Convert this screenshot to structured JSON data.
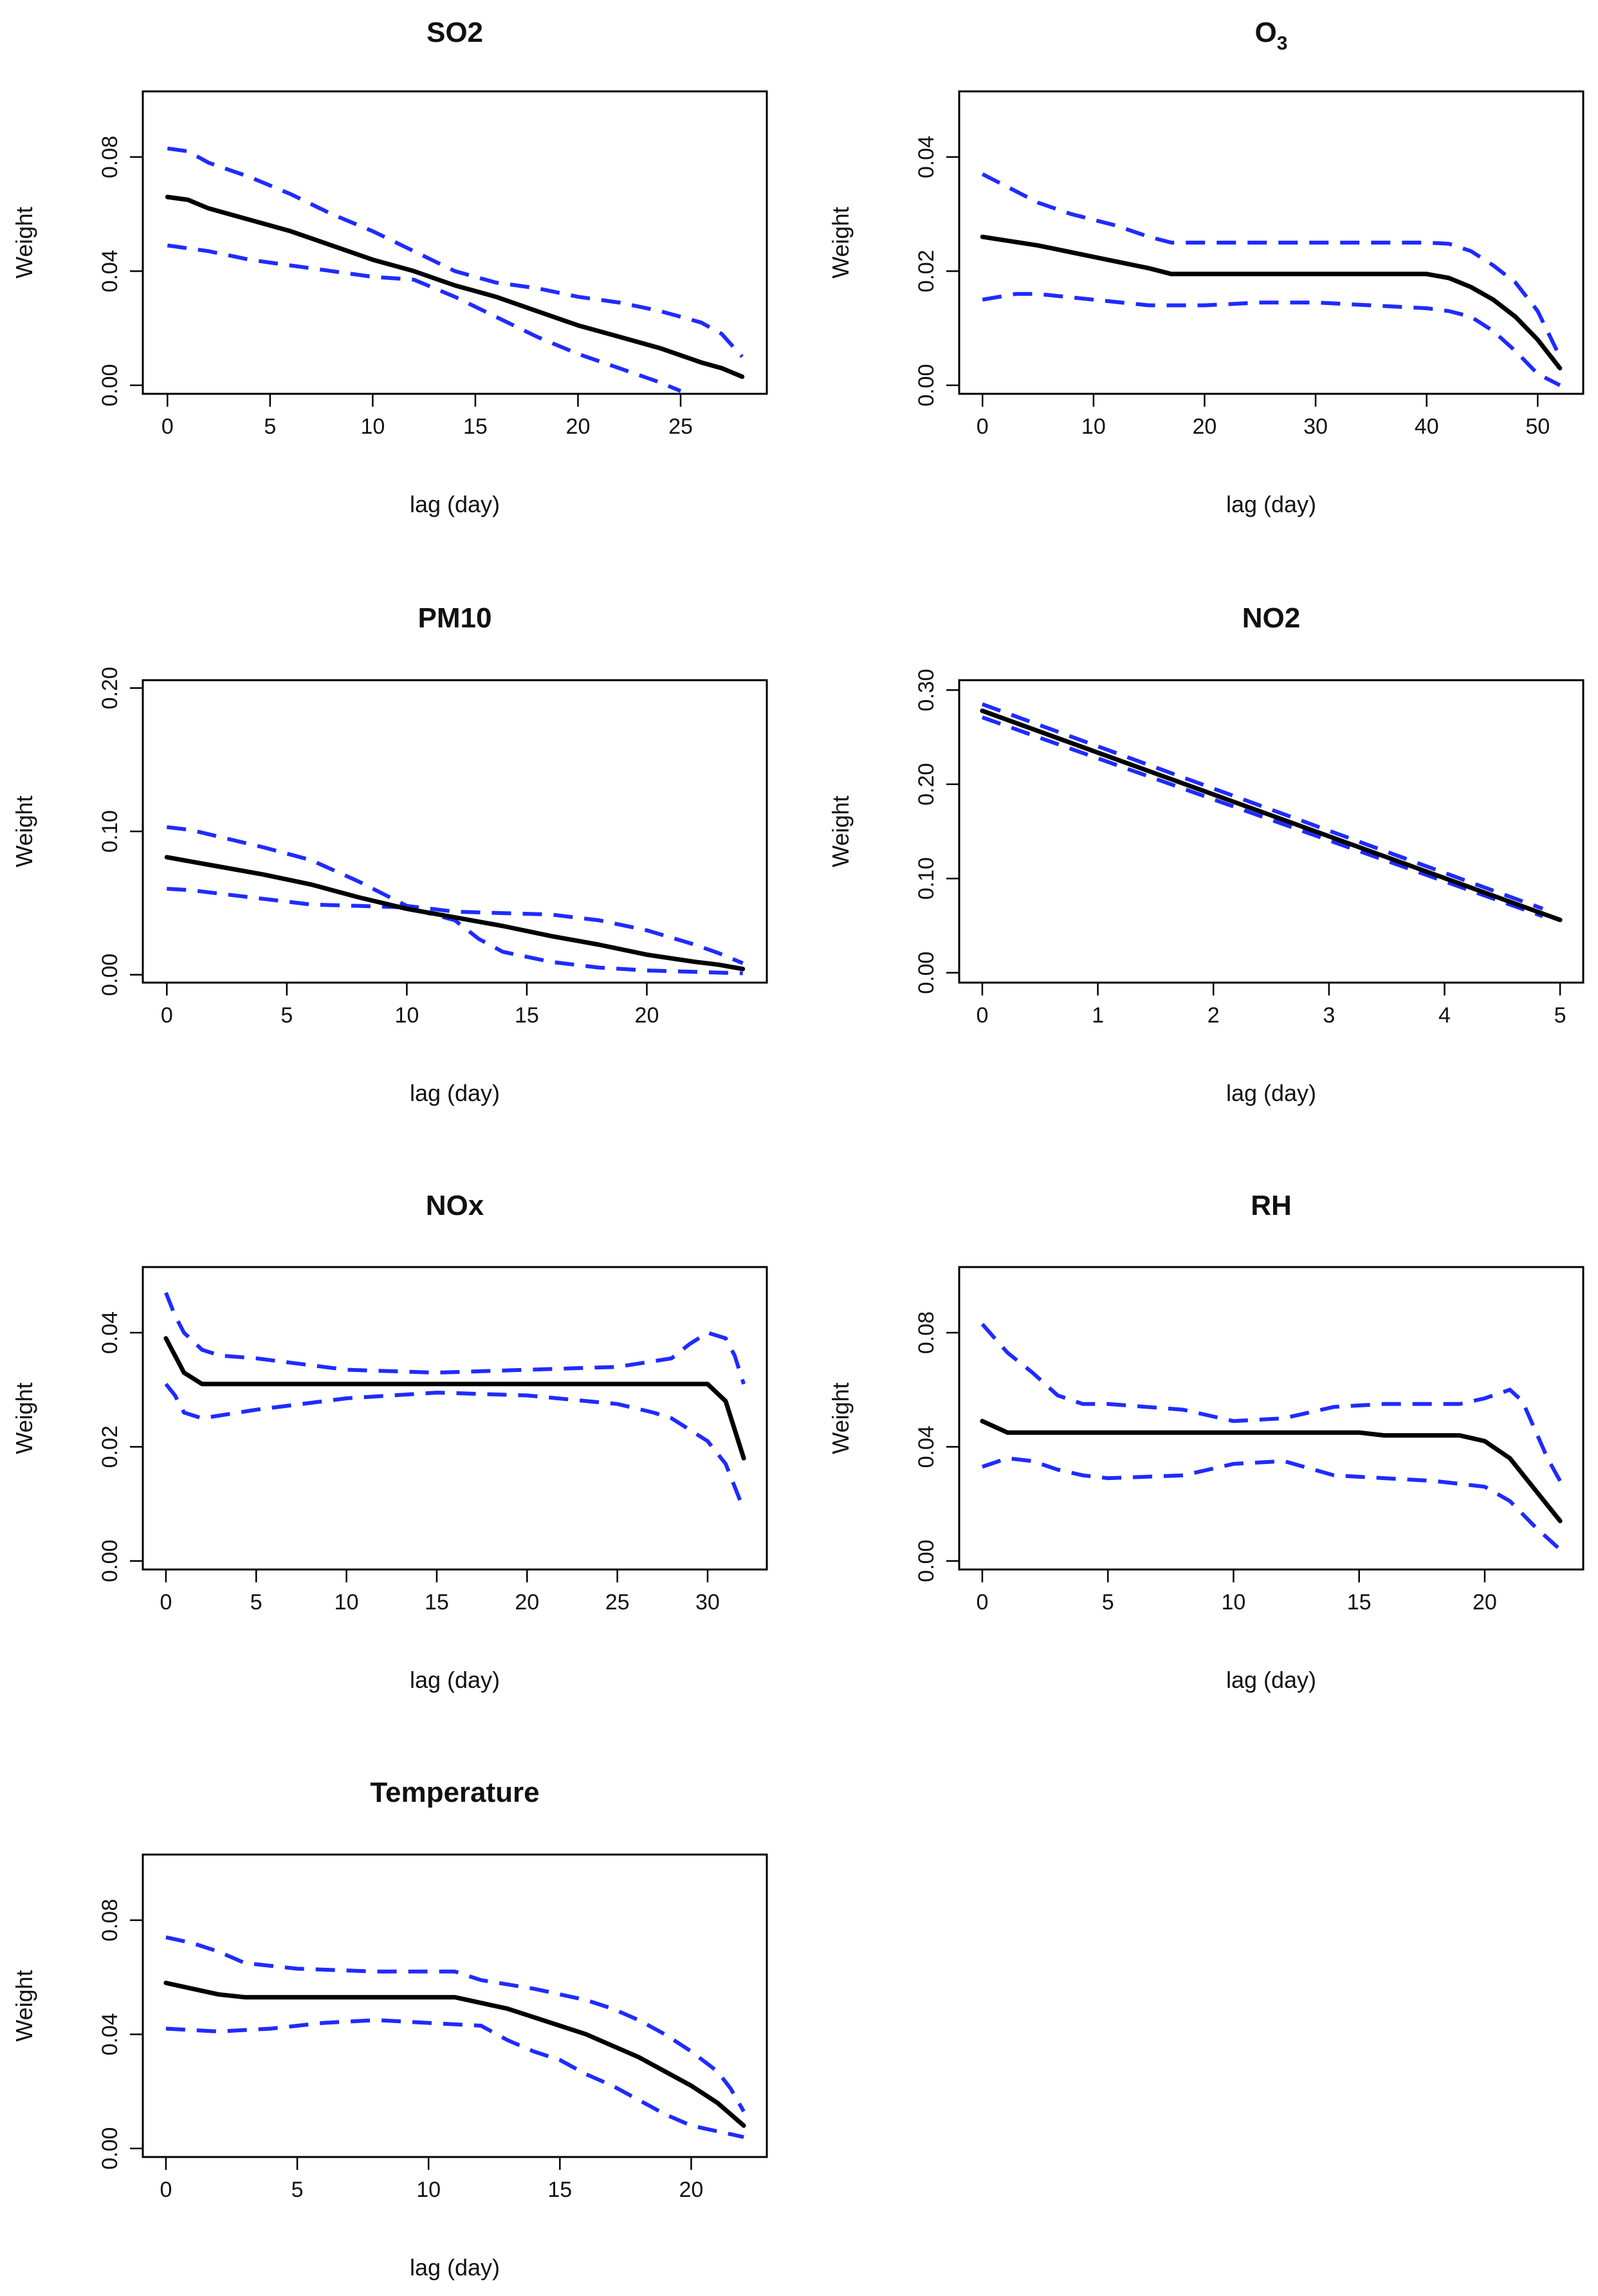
{
  "figure": {
    "estimate_color": "#000000",
    "ci_color": "#1f2bff"
  },
  "chart_data": [
    {
      "type": "line",
      "title": "SO2",
      "xlabel": "lag (day)",
      "ylabel": "Weight",
      "xlim": [
        -1.2,
        29.2
      ],
      "ylim": [
        -0.003,
        0.103
      ],
      "xticks": [
        0,
        5,
        10,
        15,
        20,
        25
      ],
      "xtick_labels": [
        "0",
        "5",
        "10",
        "15",
        "20",
        "25"
      ],
      "yticks": [
        0.0,
        0.04,
        0.08
      ],
      "ytick_labels": [
        "0.00",
        "0.04",
        "0.08"
      ],
      "series": [
        {
          "name": "estimate",
          "x": [
            0,
            1,
            2,
            4,
            6,
            8,
            10,
            12,
            14,
            16,
            18,
            20,
            22,
            24,
            26,
            27,
            28
          ],
          "y": [
            0.066,
            0.065,
            0.062,
            0.058,
            0.054,
            0.049,
            0.044,
            0.04,
            0.035,
            0.031,
            0.026,
            0.021,
            0.017,
            0.013,
            0.008,
            0.006,
            0.003
          ]
        },
        {
          "name": "upper",
          "x": [
            0,
            1,
            2,
            4,
            6,
            8,
            10,
            12,
            14,
            16,
            18,
            20,
            22,
            24,
            26,
            27,
            28
          ],
          "y": [
            0.083,
            0.082,
            0.078,
            0.073,
            0.067,
            0.06,
            0.054,
            0.047,
            0.04,
            0.036,
            0.034,
            0.031,
            0.029,
            0.026,
            0.022,
            0.018,
            0.01
          ]
        },
        {
          "name": "lower",
          "x": [
            0,
            1,
            2,
            4,
            6,
            8,
            10,
            12,
            14,
            16,
            18,
            20,
            22,
            24,
            25
          ],
          "y": [
            0.049,
            0.048,
            0.047,
            0.044,
            0.042,
            0.04,
            0.038,
            0.037,
            0.031,
            0.024,
            0.017,
            0.011,
            0.006,
            0.001,
            -0.002
          ]
        }
      ]
    },
    {
      "type": "line",
      "title": "O",
      "title_subscript": "3",
      "xlabel": "lag (day)",
      "ylabel": "Weight",
      "xlim": [
        -2.1,
        54.1
      ],
      "ylim": [
        -0.0015,
        0.0515
      ],
      "xticks": [
        0,
        10,
        20,
        30,
        40,
        50
      ],
      "xtick_labels": [
        "0",
        "10",
        "20",
        "30",
        "40",
        "50"
      ],
      "yticks": [
        0.0,
        0.02,
        0.04
      ],
      "ytick_labels": [
        "0.00",
        "0.02",
        "0.04"
      ],
      "series": [
        {
          "name": "estimate",
          "x": [
            0,
            5,
            10,
            15,
            17,
            25,
            30,
            35,
            40,
            42,
            44,
            46,
            48,
            50,
            52
          ],
          "y": [
            0.026,
            0.0245,
            0.0225,
            0.0205,
            0.0195,
            0.0195,
            0.0195,
            0.0195,
            0.0195,
            0.0188,
            0.0172,
            0.015,
            0.012,
            0.008,
            0.003
          ]
        },
        {
          "name": "upper",
          "x": [
            0,
            2,
            5,
            8,
            12,
            15,
            17,
            25,
            30,
            35,
            40,
            42,
            44,
            46,
            48,
            50,
            52
          ],
          "y": [
            0.037,
            0.035,
            0.032,
            0.03,
            0.028,
            0.026,
            0.025,
            0.025,
            0.025,
            0.025,
            0.025,
            0.0248,
            0.0235,
            0.021,
            0.018,
            0.013,
            0.005
          ]
        },
        {
          "name": "lower",
          "x": [
            0,
            3,
            5,
            10,
            15,
            20,
            25,
            30,
            35,
            40,
            42,
            44,
            46,
            48,
            50,
            52
          ],
          "y": [
            0.015,
            0.016,
            0.016,
            0.015,
            0.014,
            0.014,
            0.0145,
            0.0145,
            0.014,
            0.0135,
            0.013,
            0.012,
            0.0095,
            0.006,
            0.002,
            0.0
          ]
        }
      ]
    },
    {
      "type": "line",
      "title": "PM10",
      "xlabel": "lag (day)",
      "ylabel": "Weight",
      "xlim": [
        -1.0,
        25.0
      ],
      "ylim": [
        -0.0055,
        0.2055
      ],
      "xticks": [
        0,
        5,
        10,
        15,
        20
      ],
      "xtick_labels": [
        "0",
        "5",
        "10",
        "15",
        "20"
      ],
      "yticks": [
        0.0,
        0.1,
        0.2
      ],
      "ytick_labels": [
        "0.00",
        "0.10",
        "0.20"
      ],
      "series": [
        {
          "name": "estimate",
          "x": [
            0,
            1,
            2,
            4,
            6,
            8,
            10,
            12,
            14,
            16,
            18,
            20,
            22,
            23,
            24
          ],
          "y": [
            0.082,
            0.079,
            0.076,
            0.07,
            0.063,
            0.054,
            0.046,
            0.04,
            0.034,
            0.027,
            0.021,
            0.014,
            0.009,
            0.007,
            0.004
          ]
        },
        {
          "name": "upper",
          "x": [
            0,
            1,
            2,
            4,
            6,
            8,
            10,
            12,
            14,
            16,
            18,
            20,
            22,
            23,
            24
          ],
          "y": [
            0.103,
            0.101,
            0.097,
            0.089,
            0.08,
            0.065,
            0.048,
            0.044,
            0.043,
            0.042,
            0.038,
            0.031,
            0.021,
            0.015,
            0.008
          ]
        },
        {
          "name": "lower",
          "x": [
            0,
            1,
            2,
            4,
            6,
            8,
            10,
            12,
            13,
            14,
            16,
            18,
            20,
            22,
            24
          ],
          "y": [
            0.06,
            0.059,
            0.057,
            0.053,
            0.049,
            0.048,
            0.047,
            0.038,
            0.025,
            0.016,
            0.009,
            0.005,
            0.003,
            0.002,
            0.001
          ]
        }
      ]
    },
    {
      "type": "line",
      "title": "NO2",
      "xlabel": "lag (day)",
      "ylabel": "Weight",
      "xlim": [
        -0.2,
        5.2
      ],
      "ylim": [
        -0.0105,
        0.3105
      ],
      "xticks": [
        0,
        1,
        2,
        3,
        4,
        5
      ],
      "xtick_labels": [
        "0",
        "1",
        "2",
        "3",
        "4",
        "5"
      ],
      "yticks": [
        0.0,
        0.1,
        0.2,
        0.3
      ],
      "ytick_labels": [
        "0.00",
        "0.10",
        "0.20",
        "0.30"
      ],
      "series": [
        {
          "name": "estimate",
          "x": [
            0,
            5
          ],
          "y": [
            0.278,
            0.056
          ]
        },
        {
          "name": "upper",
          "x": [
            0,
            4.85
          ],
          "y": [
            0.285,
            0.068
          ]
        },
        {
          "name": "lower",
          "x": [
            0,
            4.85
          ],
          "y": [
            0.271,
            0.06
          ]
        }
      ]
    },
    {
      "type": "line",
      "title": "NOx",
      "xlabel": "lag (day)",
      "ylabel": "Weight",
      "xlim": [
        -1.28,
        33.28
      ],
      "ylim": [
        -0.0015,
        0.0515
      ],
      "xticks": [
        0,
        5,
        10,
        15,
        20,
        25,
        30
      ],
      "xtick_labels": [
        "0",
        "5",
        "10",
        "15",
        "20",
        "25",
        "30"
      ],
      "yticks": [
        0.0,
        0.02,
        0.04
      ],
      "ytick_labels": [
        "0.00",
        "0.02",
        "0.04"
      ],
      "series": [
        {
          "name": "estimate",
          "x": [
            0,
            0.5,
            1,
            2,
            5,
            10,
            15,
            20,
            25,
            30,
            31,
            32
          ],
          "y": [
            0.039,
            0.036,
            0.033,
            0.031,
            0.031,
            0.031,
            0.031,
            0.031,
            0.031,
            0.031,
            0.028,
            0.018
          ]
        },
        {
          "name": "upper",
          "x": [
            0,
            0.5,
            1,
            2,
            3,
            5,
            10,
            15,
            20,
            25,
            28,
            29,
            30,
            31,
            31.5,
            32
          ],
          "y": [
            0.047,
            0.043,
            0.04,
            0.037,
            0.036,
            0.0355,
            0.0335,
            0.033,
            0.0335,
            0.034,
            0.0355,
            0.038,
            0.04,
            0.039,
            0.036,
            0.031
          ]
        },
        {
          "name": "lower",
          "x": [
            0,
            0.5,
            1,
            2,
            3,
            5,
            10,
            15,
            20,
            25,
            27,
            28,
            29,
            30,
            31,
            32
          ],
          "y": [
            0.031,
            0.029,
            0.026,
            0.025,
            0.0255,
            0.0265,
            0.0285,
            0.0295,
            0.029,
            0.0275,
            0.026,
            0.025,
            0.023,
            0.021,
            0.017,
            0.009
          ]
        }
      ]
    },
    {
      "type": "line",
      "title": "RH",
      "xlabel": "lag (day)",
      "ylabel": "Weight",
      "xlim": [
        -0.92,
        23.92
      ],
      "ylim": [
        -0.003,
        0.103
      ],
      "xticks": [
        0,
        5,
        10,
        15,
        20
      ],
      "xtick_labels": [
        "0",
        "5",
        "10",
        "15",
        "20"
      ],
      "yticks": [
        0.0,
        0.04,
        0.08
      ],
      "ytick_labels": [
        "0.00",
        "0.04",
        "0.08"
      ],
      "series": [
        {
          "name": "estimate",
          "x": [
            0,
            0.5,
            1,
            5,
            10,
            15,
            16,
            19,
            20,
            21,
            22,
            23
          ],
          "y": [
            0.049,
            0.047,
            0.045,
            0.045,
            0.045,
            0.045,
            0.044,
            0.044,
            0.042,
            0.036,
            0.025,
            0.014
          ]
        },
        {
          "name": "upper",
          "x": [
            0,
            1,
            2,
            3,
            4,
            5,
            8,
            10,
            12,
            14,
            16,
            19,
            20,
            21,
            21.5,
            22,
            22.5,
            23
          ],
          "y": [
            0.083,
            0.073,
            0.066,
            0.058,
            0.055,
            0.055,
            0.053,
            0.049,
            0.05,
            0.054,
            0.055,
            0.055,
            0.057,
            0.06,
            0.056,
            0.046,
            0.036,
            0.028
          ]
        },
        {
          "name": "lower",
          "x": [
            0,
            1,
            2,
            3,
            4,
            5,
            8,
            10,
            12,
            14,
            16,
            18,
            20,
            21,
            22,
            23
          ],
          "y": [
            0.033,
            0.036,
            0.035,
            0.032,
            0.03,
            0.029,
            0.03,
            0.034,
            0.035,
            0.03,
            0.029,
            0.028,
            0.026,
            0.021,
            0.012,
            0.004
          ]
        }
      ]
    },
    {
      "type": "line",
      "title": "Temperature",
      "xlabel": "lag (day)",
      "ylabel": "Weight",
      "xlim": [
        -0.88,
        22.88
      ],
      "ylim": [
        -0.003,
        0.103
      ],
      "xticks": [
        0,
        5,
        10,
        15,
        20
      ],
      "xtick_labels": [
        "0",
        "5",
        "10",
        "15",
        "20"
      ],
      "yticks": [
        0.0,
        0.04,
        0.08
      ],
      "ytick_labels": [
        "0.00",
        "0.04",
        "0.08"
      ],
      "series": [
        {
          "name": "estimate",
          "x": [
            0,
            1,
            2,
            3,
            5,
            8,
            11,
            12,
            13,
            14,
            15,
            16,
            17,
            18,
            19,
            20,
            21,
            21.5,
            22
          ],
          "y": [
            0.058,
            0.056,
            0.054,
            0.053,
            0.053,
            0.053,
            0.053,
            0.051,
            0.049,
            0.046,
            0.043,
            0.04,
            0.036,
            0.032,
            0.027,
            0.022,
            0.016,
            0.012,
            0.008
          ]
        },
        {
          "name": "upper",
          "x": [
            0,
            1,
            2,
            3,
            5,
            8,
            11,
            12,
            14,
            16,
            17,
            18,
            19,
            20,
            21,
            21.5,
            22
          ],
          "y": [
            0.074,
            0.072,
            0.069,
            0.065,
            0.063,
            0.062,
            0.062,
            0.059,
            0.056,
            0.052,
            0.049,
            0.045,
            0.04,
            0.034,
            0.027,
            0.021,
            0.013
          ]
        },
        {
          "name": "lower",
          "x": [
            0,
            2,
            4,
            6,
            8,
            10,
            12,
            13,
            14,
            15,
            16,
            17,
            18,
            19,
            20,
            21,
            22
          ],
          "y": [
            0.042,
            0.041,
            0.042,
            0.044,
            0.045,
            0.044,
            0.043,
            0.038,
            0.034,
            0.031,
            0.026,
            0.022,
            0.017,
            0.012,
            0.008,
            0.006,
            0.004
          ]
        }
      ]
    }
  ]
}
